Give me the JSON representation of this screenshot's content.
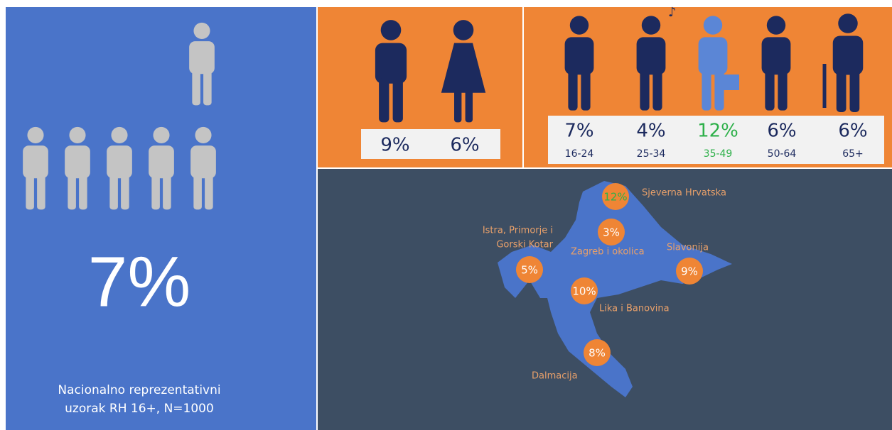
{
  "total": {
    "value": "7%",
    "note": [
      "Nacionalno reprezentativni",
      "uzorak RH 16+, N=1000"
    ]
  },
  "gender": [
    {
      "value": "9%"
    },
    {
      "value": "6%"
    }
  ],
  "age": [
    {
      "value": "7%",
      "label": "16-24"
    },
    {
      "value": "4%",
      "label": "25-34"
    },
    {
      "value": "12%",
      "label": "35-49"
    },
    {
      "value": "6%",
      "label": "50-64"
    },
    {
      "value": "6%",
      "label": "65+"
    }
  ],
  "regions": [
    {
      "name": "Sjeverna Hrvatska",
      "value": "12%"
    },
    {
      "name": "Zagreb i okolica",
      "value": "3%"
    },
    {
      "name": "Slavonija",
      "value": "9%"
    },
    {
      "name": [
        "Istra, Primorje i",
        "Gorski Kotar"
      ],
      "value": "5%"
    },
    {
      "name": "Lika i Banovina",
      "value": "10%"
    },
    {
      "name": "Dalmacija",
      "value": "8%"
    }
  ]
}
